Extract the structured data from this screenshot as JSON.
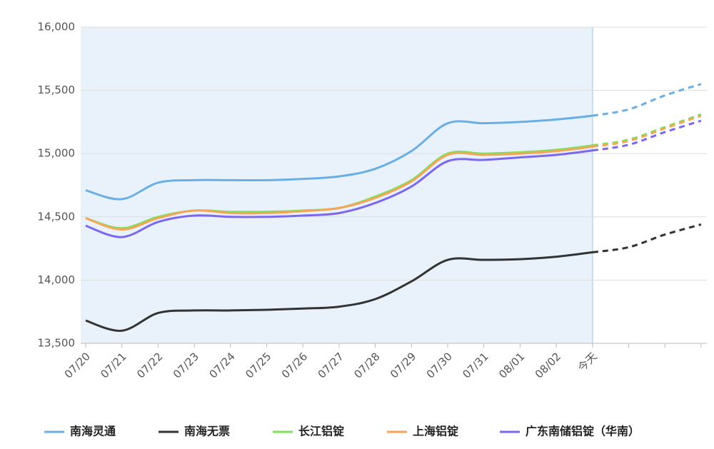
{
  "chart_data": {
    "type": "line",
    "categories": [
      "07/20",
      "07/21",
      "07/22",
      "07/23",
      "07/24",
      "07/25",
      "07/26",
      "07/27",
      "07/28",
      "07/29",
      "07/30",
      "07/31",
      "08/01",
      "08/02",
      "今天",
      null,
      null,
      null
    ],
    "series": [
      {
        "name": "南海灵通",
        "color": "#6aaee6",
        "values": [
          14710,
          14640,
          14770,
          14790,
          14790,
          14790,
          14800,
          14820,
          14880,
          15020,
          15240,
          15240,
          15250,
          15270,
          15300,
          15350,
          15460,
          15550
        ]
      },
      {
        "name": "南海无票",
        "color": "#333333",
        "values": [
          13680,
          13600,
          13740,
          13760,
          13760,
          13765,
          13775,
          13790,
          13850,
          13990,
          14160,
          14160,
          14165,
          14185,
          14220,
          14260,
          14360,
          14440
        ]
      },
      {
        "name": "长江铝锭",
        "color": "#7ee05a",
        "values": [
          14490,
          14410,
          14500,
          14550,
          14540,
          14540,
          14550,
          14570,
          14660,
          14790,
          15000,
          15000,
          15010,
          15030,
          15065,
          15110,
          15210,
          15310
        ]
      },
      {
        "name": "上海铝锭",
        "color": "#f5a55a",
        "values": [
          14490,
          14400,
          14490,
          14550,
          14530,
          14530,
          14545,
          14570,
          14650,
          14780,
          14990,
          14990,
          15000,
          15020,
          15055,
          15100,
          15200,
          15300
        ]
      },
      {
        "name": "广东南储铝锭（华南）",
        "color": "#7b68ee",
        "values": [
          14430,
          14340,
          14460,
          14510,
          14500,
          14500,
          14510,
          14530,
          14610,
          14740,
          14940,
          14950,
          14970,
          14990,
          15025,
          15070,
          15170,
          15260
        ]
      }
    ],
    "ylim": [
      13500,
      16000
    ],
    "yticks": [
      {
        "value": 13500,
        "label": "13,500"
      },
      {
        "value": 14000,
        "label": "14,000"
      },
      {
        "value": 14500,
        "label": "14,500"
      },
      {
        "value": 15000,
        "label": "15,000"
      },
      {
        "value": 15500,
        "label": "15,500"
      },
      {
        "value": 16000,
        "label": "16,000"
      }
    ],
    "grid": true,
    "dashed_from": 14,
    "legend": "bottom"
  }
}
